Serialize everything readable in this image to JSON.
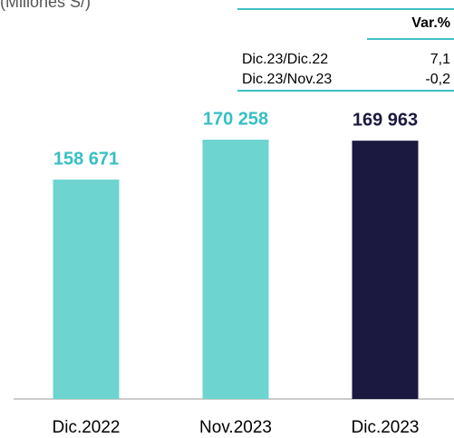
{
  "chart_data": {
    "type": "bar",
    "subtitle": "(Millones S/)",
    "categories": [
      "Dic.2022",
      "Nov.2023",
      "Dic.2023"
    ],
    "values": [
      158671,
      170258,
      169963
    ],
    "value_labels": [
      "158 671",
      "170 258",
      "169 963"
    ],
    "colors": [
      "#6dd4d0",
      "#6dd4d0",
      "#1b1940"
    ],
    "label_colors": [
      "#36bfc4",
      "#36bfc4",
      "#1b1940"
    ],
    "ylim": [
      95000,
      175000
    ],
    "table": {
      "header": [
        "",
        "Var.%"
      ],
      "rows": [
        [
          "Dic.23/Dic.22",
          "7,1"
        ],
        [
          "Dic.23/Nov.23",
          "-0,2"
        ]
      ]
    }
  }
}
